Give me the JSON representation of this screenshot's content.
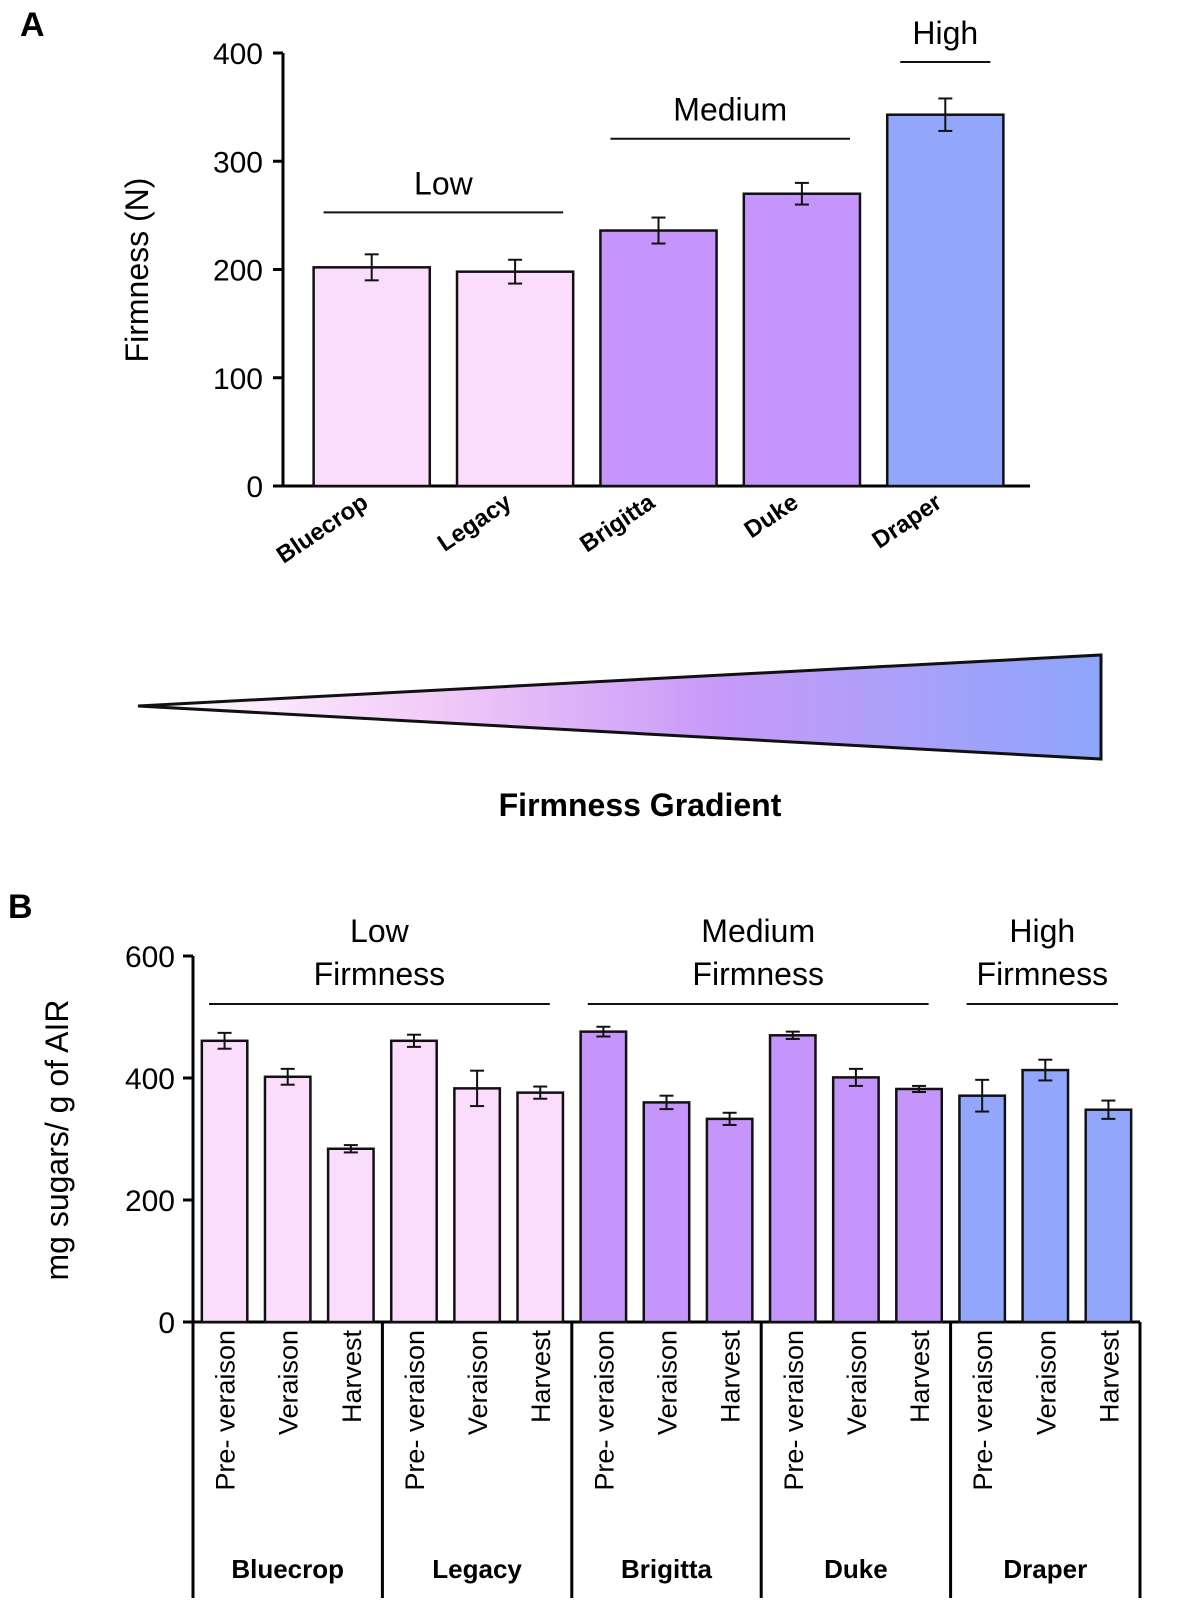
{
  "figure": {
    "panel_a_label": "A",
    "panel_b_label": "B",
    "gradient_label": "Firmness Gradient"
  },
  "chart_data": [
    {
      "type": "bar",
      "panel": "A",
      "ylabel": "Firmness (N)",
      "xlabel": "",
      "ylim": [
        0,
        400
      ],
      "yticks": [
        "0",
        "100",
        "200",
        "300",
        "400"
      ],
      "categories": [
        "Bluecrop",
        "Legacy",
        "Brigitta",
        "Duke",
        "Draper"
      ],
      "values": [
        202,
        198,
        236,
        270,
        343
      ],
      "errors": [
        12,
        11,
        12,
        10,
        15
      ],
      "colors": [
        "#fcdcfc",
        "#fcdcfc",
        "#c595fb",
        "#c595fb",
        "#92a7fc"
      ],
      "groups": [
        {
          "label": "Low",
          "from": 0,
          "to": 1
        },
        {
          "label": "Medium",
          "from": 2,
          "to": 3
        },
        {
          "label": "High",
          "from": 4,
          "to": 4
        }
      ]
    },
    {
      "type": "bar",
      "panel": "B",
      "ylabel": "mg sugars/ g of AIR",
      "xlabel": "",
      "ylim": [
        0,
        600
      ],
      "yticks": [
        "0",
        "200",
        "400",
        "600"
      ],
      "stages": [
        "Pre- veraison",
        "Veraison",
        "Harvest"
      ],
      "cultivars": [
        {
          "name": "Bluecrop",
          "values": [
            461,
            402,
            284
          ],
          "errors": [
            13,
            13,
            6
          ],
          "color": "#fcdcfc"
        },
        {
          "name": "Legacy",
          "values": [
            461,
            383,
            376
          ],
          "errors": [
            10,
            29,
            10
          ],
          "color": "#fcdcfc"
        },
        {
          "name": "Brigitta",
          "values": [
            476,
            360,
            333
          ],
          "errors": [
            8,
            11,
            10
          ],
          "color": "#c595fb"
        },
        {
          "name": "Duke",
          "values": [
            470,
            401,
            382
          ],
          "errors": [
            6,
            14,
            5
          ],
          "color": "#c595fb"
        },
        {
          "name": "Draper",
          "values": [
            371,
            413,
            348
          ],
          "errors": [
            26,
            17,
            15
          ],
          "color": "#92a7fc"
        }
      ],
      "groups": [
        {
          "label_line1": "Low",
          "label_line2": "Firmness",
          "from": 0,
          "to": 1
        },
        {
          "label_line1": "Medium",
          "label_line2": "Firmness",
          "from": 2,
          "to": 3
        },
        {
          "label_line1": "High",
          "label_line2": "Firmness",
          "from": 4,
          "to": 4
        }
      ]
    }
  ]
}
